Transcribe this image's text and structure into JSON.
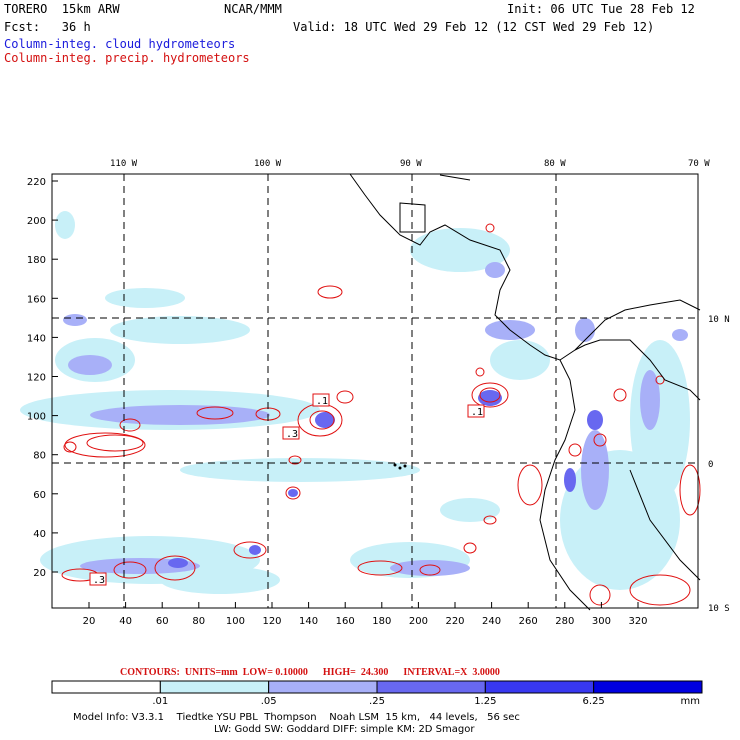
{
  "header": {
    "model": "TORERO  15km ARW",
    "center": "NCAR/MMM",
    "init": "Init: 06 UTC Tue 28 Feb 12",
    "fcst": "Fcst:   36 h",
    "valid": "Valid: 18 UTC Wed 29 Feb 12 (12 CST Wed 29 Feb 12)",
    "field_cloud": "Column-integ. cloud hydrometeors",
    "field_precip": "Column-integ. precip. hydrometeors"
  },
  "map": {
    "top_lon_labels": [
      "110 W",
      "100 W",
      "90 W",
      "80 W",
      "70 W"
    ],
    "right_lat_labels": [
      "10 N",
      "0",
      "10 S"
    ],
    "left_y_ticks": [
      "220",
      "200",
      "180",
      "160",
      "140",
      "120",
      "100",
      "80",
      "60",
      "40",
      "20"
    ],
    "bottom_x_ticks": [
      "20",
      "40",
      "60",
      "80",
      "100",
      "120",
      "140",
      "160",
      "180",
      "200",
      "220",
      "240",
      "260",
      "280",
      "300",
      "320"
    ],
    "box_labels": [
      ".1",
      ".3",
      ".1",
      ".3"
    ],
    "colors": {
      "cloud_light": "#c8f0f8",
      "cloud_mid": "#a8b0f8",
      "cloud_dark": "#6868f0",
      "precip": "#e01010",
      "coast": "#000000"
    }
  },
  "contours": {
    "note": "CONTOURS:  UNITS=mm  LOW= 0.10000      HIGH=  24.300      INTERVAL=X  3.0000"
  },
  "colorbar": {
    "tick_labels": [
      ".01",
      ".05",
      ".25",
      "1.25",
      "6.25"
    ],
    "unit": "mm",
    "colors": [
      "#ffffff",
      "#c8f0f8",
      "#a8b0f8",
      "#6868f0",
      "#3838f0",
      "#0000e0"
    ]
  },
  "footer": {
    "line1": "Model Info: V3.3.1    Tiedtke YSU PBL  Thompson    Noah LSM  15 km,   44 levels,   56 sec",
    "line2": "LW: Godd SW: Goddard DIFF: simple KM: 2D Smagor"
  }
}
